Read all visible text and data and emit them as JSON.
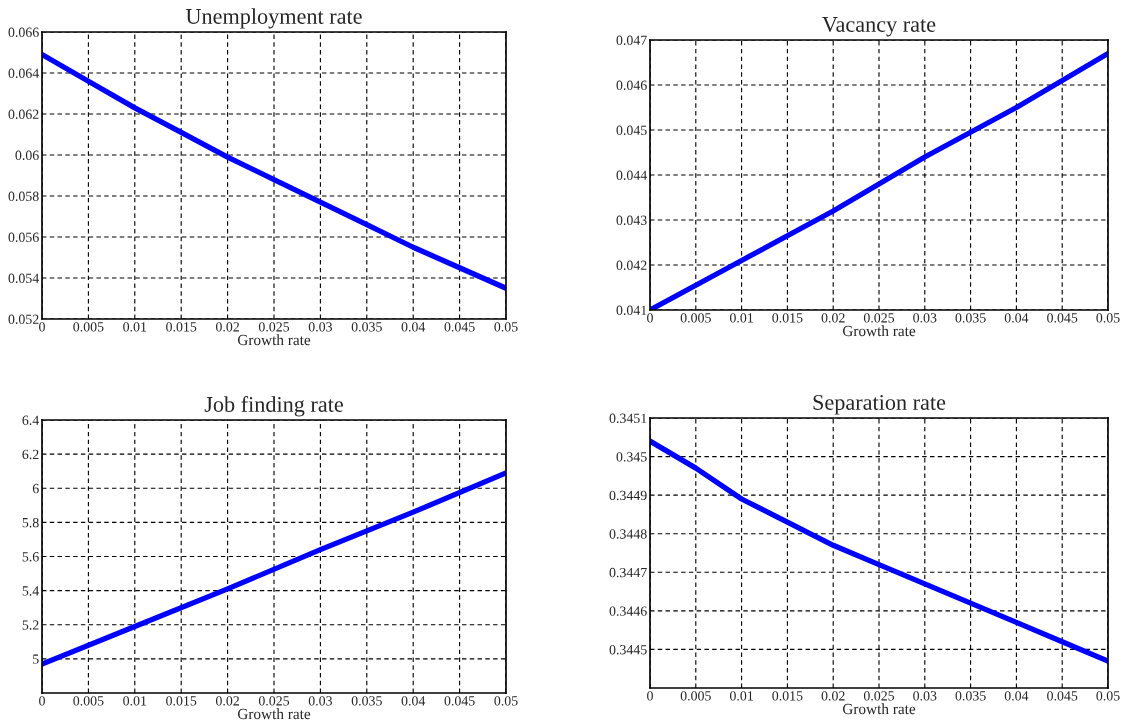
{
  "chart_data": [
    {
      "type": "line",
      "title": "Unemployment rate",
      "xlabel": "Growth rate",
      "x": [
        0,
        0.005,
        0.01,
        0.015,
        0.02,
        0.025,
        0.03,
        0.035,
        0.04,
        0.045,
        0.05
      ],
      "series": [
        {
          "color": "#0000ff",
          "values": [
            0.0649,
            0.0636,
            0.0623,
            0.0611,
            0.0599,
            0.0588,
            0.0577,
            0.0566,
            0.0555,
            0.0545,
            0.0535
          ]
        }
      ],
      "xlim": [
        0,
        0.05
      ],
      "xticks": [
        0,
        0.005,
        0.01,
        0.015,
        0.02,
        0.025,
        0.03,
        0.035,
        0.04,
        0.045,
        0.05
      ],
      "ylim": [
        0.052,
        0.066
      ],
      "yticks": [
        0.052,
        0.054,
        0.056,
        0.058,
        {
          "value": 0.06,
          "label": "0.06"
        },
        0.062,
        0.064,
        0.066
      ],
      "grid": true,
      "line_style": "solid",
      "marker": "none"
    },
    {
      "type": "line",
      "title": "Vacancy rate",
      "xlabel": "Growth rate",
      "x": [
        0,
        0.01,
        0.02,
        0.03,
        0.04,
        0.05
      ],
      "series": [
        {
          "color": "#0000ff",
          "values": [
            0.041,
            0.0421,
            0.0432,
            0.0444,
            0.0455,
            0.0467
          ]
        }
      ],
      "xlim": [
        0,
        0.05
      ],
      "xticks": [
        0,
        0.005,
        0.01,
        0.015,
        0.02,
        0.025,
        0.03,
        0.035,
        0.04,
        0.045,
        0.05
      ],
      "ylim": [
        0.041,
        0.047
      ],
      "yticks": [
        0.041,
        0.042,
        0.043,
        0.044,
        0.045,
        0.046,
        0.047
      ],
      "grid": true,
      "line_style": "solid",
      "marker": "none"
    },
    {
      "type": "line",
      "title": "Job finding rate",
      "xlabel": "Growth rate",
      "x": [
        0,
        0.01,
        0.02,
        0.03,
        0.04,
        0.05
      ],
      "series": [
        {
          "color": "#0000ff",
          "values": [
            4.97,
            5.19,
            5.41,
            5.64,
            5.86,
            6.09
          ]
        }
      ],
      "xlim": [
        0,
        0.05
      ],
      "xticks": [
        0,
        0.005,
        0.01,
        0.015,
        0.02,
        0.025,
        0.03,
        0.035,
        0.04,
        0.045,
        0.05
      ],
      "ylim": [
        4.8,
        6.4
      ],
      "yticks": [
        {
          "value": 5,
          "label": "5"
        },
        5.2,
        5.4,
        5.6,
        5.8,
        {
          "value": 6,
          "label": "6"
        },
        6.2,
        6.4
      ],
      "grid": true,
      "line_style": "solid",
      "marker": "none"
    },
    {
      "type": "line",
      "title": "Separation rate",
      "xlabel": "Growth rate",
      "x": [
        0,
        0.005,
        0.01,
        0.015,
        0.02,
        0.025,
        0.03,
        0.035,
        0.04,
        0.045,
        0.05
      ],
      "series": [
        {
          "color": "#0000ff",
          "values": [
            0.34504,
            0.34497,
            0.34489,
            0.34483,
            0.34477,
            0.34472,
            0.34467,
            0.34462,
            0.34457,
            0.34452,
            0.34447
          ]
        }
      ],
      "xlim": [
        0,
        0.05
      ],
      "xticks": [
        0,
        0.005,
        0.01,
        0.015,
        0.02,
        0.025,
        0.03,
        0.035,
        0.04,
        0.045,
        0.05
      ],
      "ylim": [
        0.3444,
        0.3451
      ],
      "yticks": [
        0.3445,
        0.3446,
        0.3447,
        0.3448,
        0.3449,
        0.345,
        0.3451
      ],
      "grid": true,
      "line_style": "solid",
      "marker": "none"
    }
  ]
}
